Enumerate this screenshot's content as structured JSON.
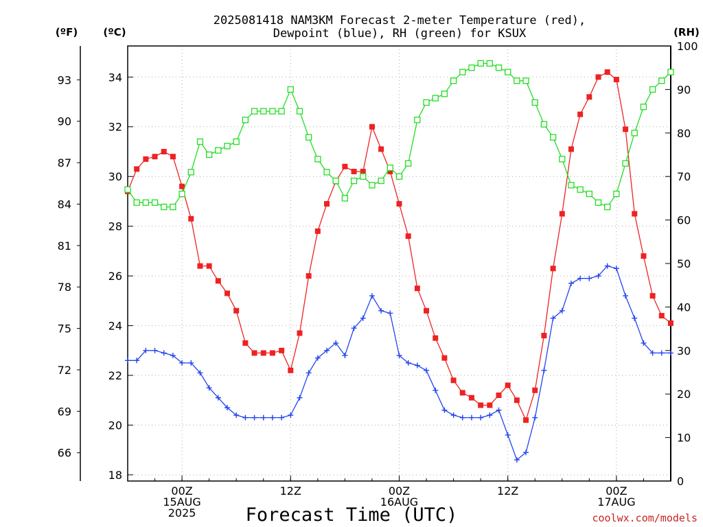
{
  "chart_data": {
    "type": "line",
    "title_line1": "2025081418 NAM3KM Forecast 2-meter Temperature (red),",
    "title_line2": "Dewpoint (blue), RH (green) for KSUX",
    "xlabel": "Forecast Time (UTC)",
    "watermark": "coolwx.com/models",
    "left_outer_unit": "(ºF)",
    "left_inner_unit": "(ºC)",
    "right_unit": "(RH)",
    "x_range_hours": [
      0,
      60
    ],
    "x_ticks": [
      {
        "hour": 6,
        "label1": "00Z",
        "label2": "15AUG",
        "label3": "2025"
      },
      {
        "hour": 18,
        "label1": "12Z",
        "label2": "",
        "label3": ""
      },
      {
        "hour": 30,
        "label1": "00Z",
        "label2": "16AUG",
        "label3": ""
      },
      {
        "hour": 42,
        "label1": "12Z",
        "label2": "",
        "label3": ""
      },
      {
        "hour": 54,
        "label1": "00Z",
        "label2": "17AUG",
        "label3": ""
      }
    ],
    "ylim_c": [
      17.75,
      35.25
    ],
    "yticks_c": [
      "18",
      "20",
      "22",
      "24",
      "26",
      "28",
      "30",
      "32",
      "34"
    ],
    "yticks_f": [
      "66",
      "69",
      "72",
      "75",
      "78",
      "81",
      "84",
      "87",
      "90",
      "93"
    ],
    "ylim_rh": [
      0,
      100
    ],
    "yticks_rh": [
      "0",
      "10",
      "20",
      "30",
      "40",
      "50",
      "60",
      "70",
      "80",
      "90",
      "100"
    ],
    "grid": true,
    "colors": {
      "temperature": "#ee2222",
      "dewpoint": "#2244ee",
      "rh": "#22dd22",
      "watermark": "#cc2222"
    },
    "series": [
      {
        "axis": "celsius",
        "marker": "filled-square",
        "values": [
          29.4,
          30.3,
          30.7,
          30.8,
          31.0,
          30.8,
          29.6,
          28.3,
          26.4,
          26.4,
          25.8,
          25.3,
          24.6,
          23.3,
          22.9,
          22.9,
          22.9,
          23.0,
          22.2,
          23.7,
          26.0,
          27.8,
          28.9,
          29.8,
          30.4,
          30.2,
          30.2,
          32.0,
          31.1,
          30.2,
          28.9,
          27.6,
          25.5,
          24.6,
          23.5,
          22.7,
          21.8,
          21.3,
          21.1,
          20.8,
          20.8,
          21.2,
          21.6,
          21.0,
          20.2,
          21.4,
          23.6,
          26.3,
          28.5,
          31.1,
          32.5,
          33.2,
          34.0,
          34.2,
          33.9,
          31.9,
          28.5,
          26.8,
          25.2,
          24.4,
          24.1
        ]
      },
      {
        "axis": "celsius",
        "marker": "plus",
        "values": [
          22.6,
          22.6,
          23.0,
          23.0,
          22.9,
          22.8,
          22.5,
          22.5,
          22.1,
          21.5,
          21.1,
          20.7,
          20.4,
          20.3,
          20.3,
          20.3,
          20.3,
          20.3,
          20.4,
          21.1,
          22.1,
          22.7,
          23.0,
          23.3,
          22.8,
          23.9,
          24.3,
          25.2,
          24.6,
          24.5,
          22.8,
          22.5,
          22.4,
          22.2,
          21.4,
          20.6,
          20.4,
          20.3,
          20.3,
          20.3,
          20.4,
          20.6,
          19.6,
          18.6,
          18.9,
          20.3,
          22.2,
          24.3,
          24.6,
          25.7,
          25.9,
          25.9,
          26.0,
          26.4,
          26.3,
          25.2,
          24.3,
          23.3,
          22.9,
          22.9,
          22.9
        ]
      },
      {
        "axis": "rh",
        "marker": "open-square",
        "values": [
          67,
          64,
          64,
          64,
          63,
          63,
          66,
          71,
          78,
          75,
          76,
          77,
          78,
          83,
          85,
          85,
          85,
          85,
          90,
          85,
          79,
          74,
          71,
          69,
          65,
          69,
          70,
          68,
          69,
          72,
          70,
          73,
          83,
          87,
          88,
          89,
          92,
          94,
          95,
          96,
          96,
          95,
          94,
          92,
          92,
          87,
          82,
          79,
          74,
          68,
          67,
          66,
          64,
          63,
          66,
          73,
          80,
          86,
          90,
          92,
          94
        ]
      }
    ]
  }
}
